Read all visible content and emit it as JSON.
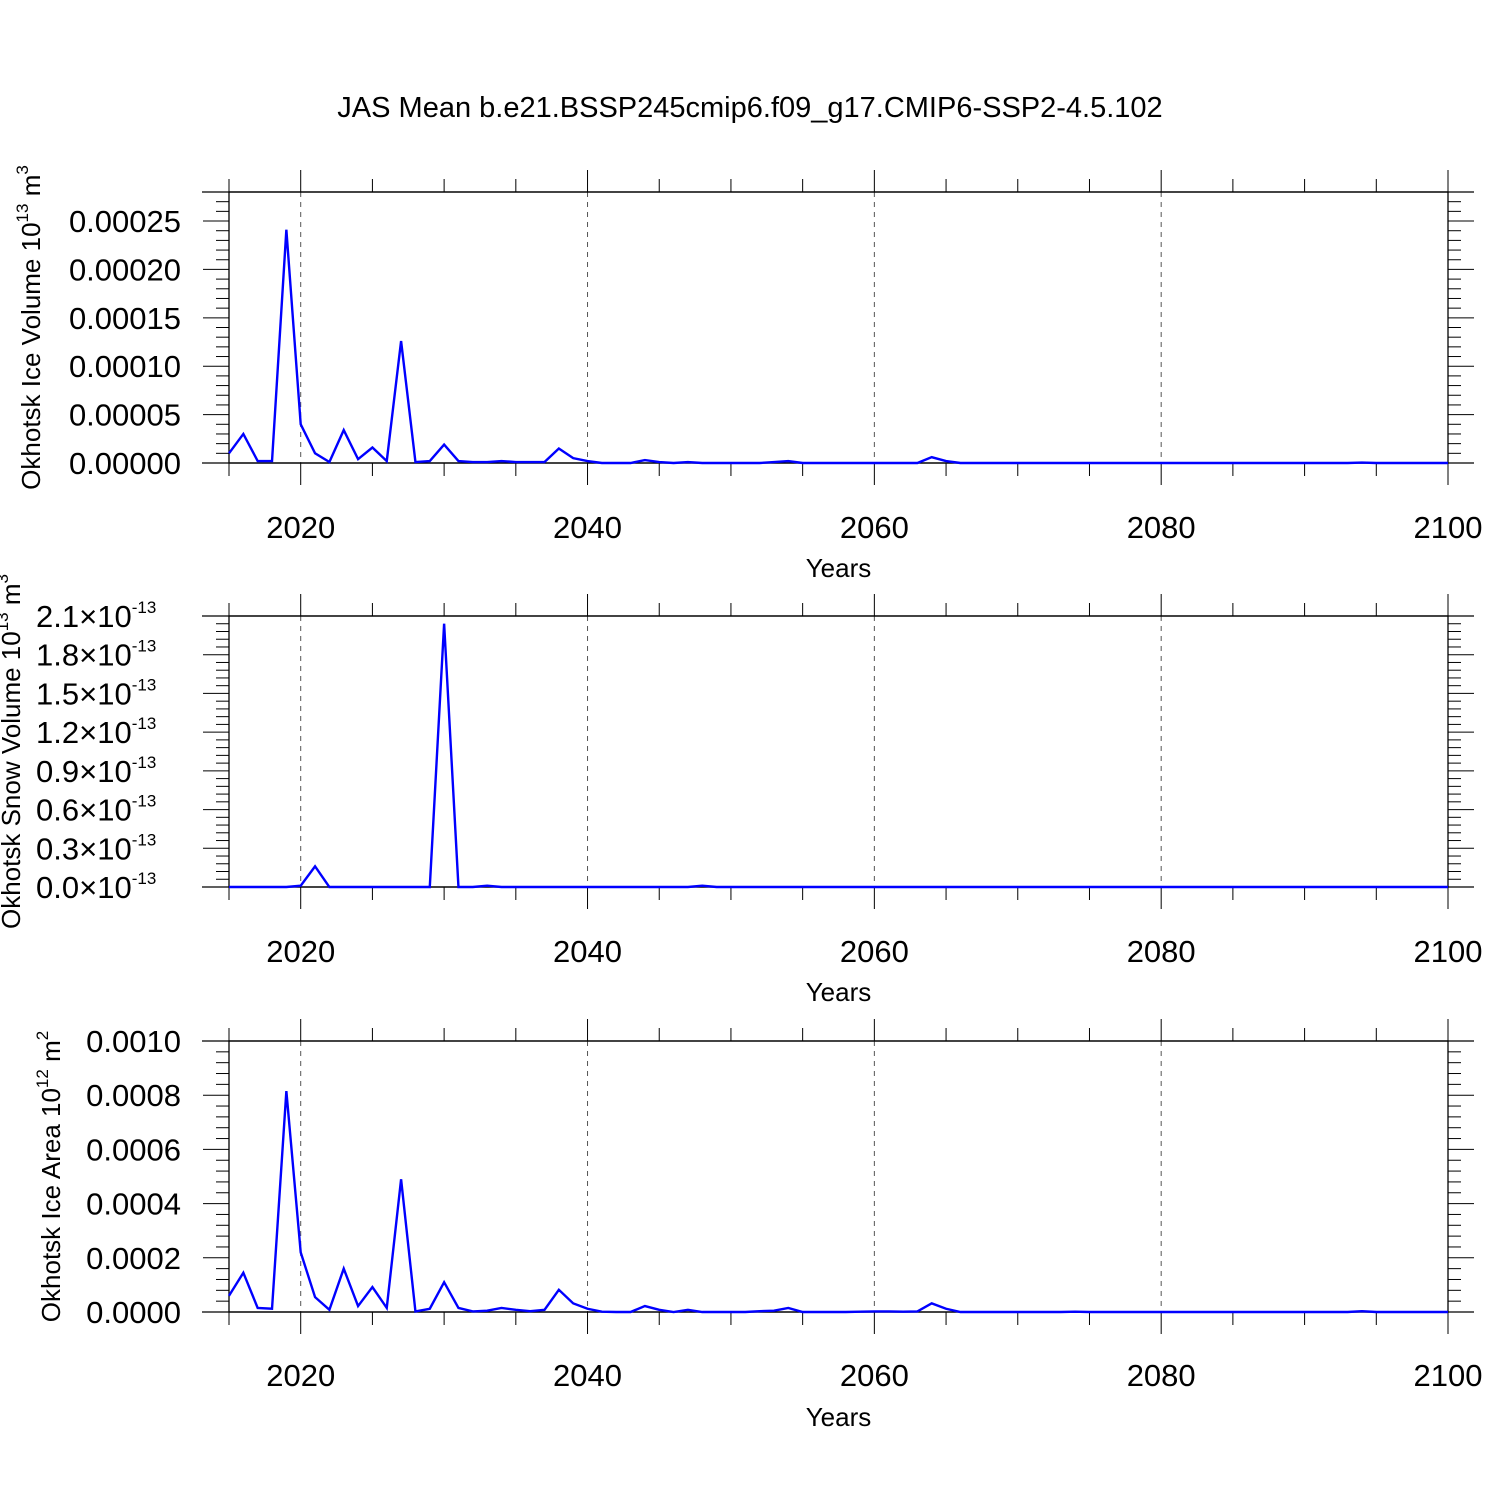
{
  "title": "JAS Mean b.e21.BSSP245cmip6.f09_g17.CMIP6-SSP2-4.5.102",
  "line_color": "#0000ff",
  "chart_data": [
    {
      "type": "line",
      "xlabel": "Years",
      "ylabel_main": "Okhotsk Ice Volume 10",
      "ylabel_exp": "13",
      "ylabel_unit": " m",
      "ylabel_unit_exp": "3",
      "xlim": [
        2015,
        2100
      ],
      "ylim": [
        0,
        0.00028
      ],
      "xticks": [
        2020,
        2040,
        2060,
        2080,
        2100
      ],
      "yticks": [
        0,
        5e-05,
        0.0001,
        0.00015,
        0.0002,
        0.00025
      ],
      "yticklabels": [
        "0.00000",
        "0.00005",
        "0.00010",
        "0.00015",
        "0.00020",
        "0.00025"
      ],
      "x": [
        2015,
        2016,
        2017,
        2018,
        2019,
        2020,
        2021,
        2022,
        2023,
        2024,
        2025,
        2026,
        2027,
        2028,
        2029,
        2030,
        2031,
        2032,
        2033,
        2034,
        2035,
        2036,
        2037,
        2038,
        2039,
        2040,
        2041,
        2042,
        2043,
        2044,
        2045,
        2046,
        2047,
        2048,
        2049,
        2050,
        2051,
        2052,
        2053,
        2054,
        2055,
        2056,
        2057,
        2058,
        2059,
        2060,
        2061,
        2062,
        2063,
        2064,
        2065,
        2066,
        2067,
        2068,
        2069,
        2070,
        2071,
        2072,
        2073,
        2074,
        2075,
        2076,
        2077,
        2078,
        2079,
        2080,
        2081,
        2082,
        2083,
        2084,
        2085,
        2086,
        2087,
        2088,
        2089,
        2090,
        2091,
        2092,
        2093,
        2094,
        2095,
        2096,
        2097,
        2098,
        2099,
        2100
      ],
      "values": [
        1e-05,
        3e-05,
        2e-06,
        2e-06,
        0.000241,
        4e-05,
        1e-05,
        1e-06,
        3.4e-05,
        4e-06,
        1.6e-05,
        2e-06,
        0.000126,
        1e-06,
        2e-06,
        1.9e-05,
        2e-06,
        1e-06,
        1e-06,
        2e-06,
        1e-06,
        1e-06,
        1e-06,
        1.5e-05,
        5e-06,
        2e-06,
        0,
        0,
        0,
        3e-06,
        1e-06,
        0,
        1e-06,
        0,
        0,
        0,
        0,
        0,
        1e-06,
        2e-06,
        0,
        0,
        0,
        0,
        0,
        0,
        0,
        0,
        0,
        6e-06,
        2e-06,
        0,
        0,
        0,
        0,
        0,
        0,
        0,
        0,
        0,
        0,
        0,
        0,
        0,
        0,
        0,
        0,
        0,
        0,
        0,
        0,
        0,
        0,
        0,
        0,
        0,
        0,
        0,
        0,
        5e-07,
        0,
        0,
        0,
        0,
        0,
        0
      ]
    },
    {
      "type": "line",
      "xlabel": "Years",
      "ylabel_main": "Okhotsk Snow Volume 10",
      "ylabel_exp": "13",
      "ylabel_unit": " m",
      "ylabel_unit_exp": "3",
      "xlim": [
        2015,
        2100
      ],
      "ylim": [
        0,
        2.1
      ],
      "y_multiplier": "×10",
      "y_multiplier_exp": "-13",
      "xticks": [
        2020,
        2040,
        2060,
        2080,
        2100
      ],
      "yticks": [
        0,
        0.3,
        0.6,
        0.9,
        1.2,
        1.5,
        1.8,
        2.1
      ],
      "yticklabels": [
        "0.0",
        "0.3",
        "0.6",
        "0.9",
        "1.2",
        "1.5",
        "1.8",
        "2.1"
      ],
      "x": [
        2015,
        2016,
        2017,
        2018,
        2019,
        2020,
        2021,
        2022,
        2023,
        2024,
        2025,
        2026,
        2027,
        2028,
        2029,
        2030,
        2031,
        2032,
        2033,
        2034,
        2035,
        2036,
        2037,
        2038,
        2039,
        2040,
        2041,
        2042,
        2043,
        2044,
        2045,
        2046,
        2047,
        2048,
        2049,
        2050,
        2051,
        2052,
        2053,
        2054,
        2055,
        2056,
        2057,
        2058,
        2059,
        2060,
        2061,
        2062,
        2063,
        2064,
        2065,
        2066,
        2067,
        2068,
        2069,
        2070,
        2071,
        2072,
        2073,
        2074,
        2075,
        2076,
        2077,
        2078,
        2079,
        2080,
        2081,
        2082,
        2083,
        2084,
        2085,
        2086,
        2087,
        2088,
        2089,
        2090,
        2091,
        2092,
        2093,
        2094,
        2095,
        2096,
        2097,
        2098,
        2099,
        2100
      ],
      "values": [
        0,
        0,
        0,
        0,
        0,
        0.01,
        0.16,
        0,
        0,
        0,
        0,
        0,
        0,
        0,
        0,
        2.04,
        0,
        0,
        0.01,
        0,
        0,
        0,
        0,
        0,
        0,
        0,
        0,
        0,
        0,
        0,
        0,
        0,
        0,
        0.01,
        0,
        0,
        0,
        0,
        0,
        0,
        0,
        0,
        0,
        0,
        0,
        0,
        0,
        0,
        0,
        0,
        0,
        0,
        0,
        0,
        0,
        0,
        0,
        0,
        0,
        0,
        0,
        0,
        0,
        0,
        0,
        0,
        0,
        0,
        0,
        0,
        0,
        0,
        0,
        0,
        0,
        0,
        0,
        0,
        0,
        0,
        0,
        0,
        0,
        0,
        0,
        0
      ]
    },
    {
      "type": "line",
      "xlabel": "Years",
      "ylabel_main": "Okhotsk Ice Area 10",
      "ylabel_exp": "12",
      "ylabel_unit": " m",
      "ylabel_unit_exp": "2",
      "xlim": [
        2015,
        2100
      ],
      "ylim": [
        0,
        0.001
      ],
      "xticks": [
        2020,
        2040,
        2060,
        2080,
        2100
      ],
      "yticks": [
        0,
        0.0002,
        0.0004,
        0.0006,
        0.0008,
        0.001
      ],
      "yticklabels": [
        "0.0000",
        "0.0002",
        "0.0004",
        "0.0006",
        "0.0008",
        "0.0010"
      ],
      "x": [
        2015,
        2016,
        2017,
        2018,
        2019,
        2020,
        2021,
        2022,
        2023,
        2024,
        2025,
        2026,
        2027,
        2028,
        2029,
        2030,
        2031,
        2032,
        2033,
        2034,
        2035,
        2036,
        2037,
        2038,
        2039,
        2040,
        2041,
        2042,
        2043,
        2044,
        2045,
        2046,
        2047,
        2048,
        2049,
        2050,
        2051,
        2052,
        2053,
        2054,
        2055,
        2056,
        2057,
        2058,
        2059,
        2060,
        2061,
        2062,
        2063,
        2064,
        2065,
        2066,
        2067,
        2068,
        2069,
        2070,
        2071,
        2072,
        2073,
        2074,
        2075,
        2076,
        2077,
        2078,
        2079,
        2080,
        2081,
        2082,
        2083,
        2084,
        2085,
        2086,
        2087,
        2088,
        2089,
        2090,
        2091,
        2092,
        2093,
        2094,
        2095,
        2096,
        2097,
        2098,
        2099,
        2100
      ],
      "values": [
        6e-05,
        0.000145,
        1.5e-05,
        1.2e-05,
        0.000815,
        0.00022,
        5.5e-05,
        8e-06,
        0.00016,
        2.2e-05,
        9.2e-05,
        1.5e-05,
        0.00049,
        2e-06,
        1.2e-05,
        0.00011,
        1.5e-05,
        2e-06,
        5e-06,
        1.5e-05,
        8e-06,
        3e-06,
        8e-06,
        8.2e-05,
        3.2e-05,
        1.2e-05,
        1e-06,
        0,
        0,
        2.2e-05,
        8e-06,
        0,
        8e-06,
        0,
        0,
        0,
        0,
        3e-06,
        5e-06,
        1.5e-05,
        0,
        0,
        0,
        0,
        1e-06,
        2e-06,
        2e-06,
        1e-06,
        2e-06,
        3.2e-05,
        1.2e-05,
        0,
        0,
        0,
        0,
        0,
        0,
        0,
        0,
        1e-06,
        0,
        0,
        0,
        0,
        0,
        0,
        0,
        0,
        0,
        0,
        0,
        0,
        0,
        0,
        0,
        0,
        0,
        0,
        0,
        3e-06,
        0,
        0,
        0,
        0,
        0,
        0
      ]
    }
  ]
}
